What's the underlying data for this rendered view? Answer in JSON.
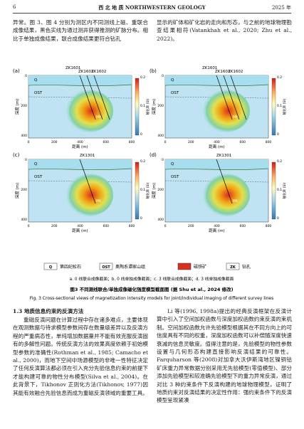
{
  "header": {
    "page": "6",
    "journal": "西 北 地 质 NORTHWESTERN GEOLOGY",
    "year": "2025 年"
  },
  "top_text": {
    "left": "异常。图 3、图 4 分别为测区内不同测线上磁、重联合成像结果，黑色实线为通过测井获得推测的矿脉分布。相比于单独成像结果，联合成像结果更符合钻孔",
    "right": "显示的矿体和矿化岩的走向和形态，与之前的地球物理勘查结果相符(Vatankhah et al., 2020; Zhu et al., 2022)。"
  },
  "figure": {
    "panels": [
      {
        "label": "(a)",
        "wells": [
          "ZK1601",
          "ZK1603",
          "ZK1602"
        ],
        "units": [
          "Q",
          "OST",
          "Mt"
        ]
      },
      {
        "label": "(b)",
        "wells": [
          "ZK1601",
          "ZK1603",
          "ZK1602"
        ],
        "units": [
          "Q",
          "OST",
          "Mt"
        ]
      },
      {
        "label": "(c)",
        "wells": [
          "ZK1301"
        ],
        "units": [
          "Q",
          "OST",
          "Mt"
        ]
      },
      {
        "label": "(d)",
        "wells": [
          "ZK1301"
        ],
        "units": [
          "Q",
          "OST",
          "Mt"
        ]
      }
    ],
    "xlabel": "距离 (m)",
    "ylabel": "深度 (m)",
    "colorbar_label": "磁化率 (SI)",
    "xticks": [
      "0",
      "200",
      "400",
      "600",
      "800"
    ],
    "yticks": [
      "0",
      "200",
      "400"
    ],
    "colorbar_ticks": [
      "0",
      "0.1",
      "0.2"
    ],
    "legend": [
      {
        "key": "Q",
        "text": "第四纪松石"
      },
      {
        "key": "OST",
        "text": "奥陶系谭家山组"
      },
      {
        "key": "",
        "text": "磁铁矿"
      },
      {
        "key": "ZK",
        "text": "钻孔"
      }
    ],
    "sub_caption": "a. 0 线联合成像截面；b. 0 线单独成像截面；c. 3 线联合成像截面；d. 3 线单独成像截面",
    "caption_cn": "图3   不同测线联合/单独成像磁化强度模型截面图 (据 Shu et al., 2024 修改)",
    "caption_en": "Fig. 3   Cross-sectional views of magnetization intensity models for joint/individual imaging of different survey lines"
  },
  "section": {
    "heading": "1.3   地质信息约束的反演方法",
    "left": "重磁反演问题在计算过程中存在诸多难点，主要体现在观测数据与待求模型参数间存在数量级差异以及反演方程的严重病态性，单纯增加数据量并不能有效克服反演固有的多解性问题。传统反演方法的效果高度依赖于初始模型参数的准确性(Rothman et al., 1985; Camacho et al., 2000)，而地下空间中场源模型的非唯一性特征决定了任何反演算法都必须在引入充分先验信息约束的前提下才能构建可靠的物性分布模型(Silva et al., 2004)。在此背景下，Tikhonov 正则化方法(Tikhonov, 1977)因其能有效融合先验信息而成为重磁反演领域的重要工具。",
    "right": "Li 等(1996, 1998a)提出的经典反演框架在反演计算中引入了空间加权函数与深度加权函数约束反演的束机制。空间加权函数允许先验模型根据其在不同方向上的可信度具有不同的权重，深度加权函数可以补偿随深度快速衰减的信息灵敏度。值得注意的是，先验模型的物性参数设置与几何形态构建直接影响反演结果的可靠性。Farquharson 等(2008)对加拿大沃伊斯湾地区镍铜钴矿床重力异常数据分别采用无先验模型(零值模型)、部分添加先验模型和较准确先验模型下的重力异常反演，通过对比 3 种约束条件下反演构建的地球物理模型，证明了地质约束对反演结果的决定性作用：强约束条件下的反演模型呈现紧凑"
  }
}
